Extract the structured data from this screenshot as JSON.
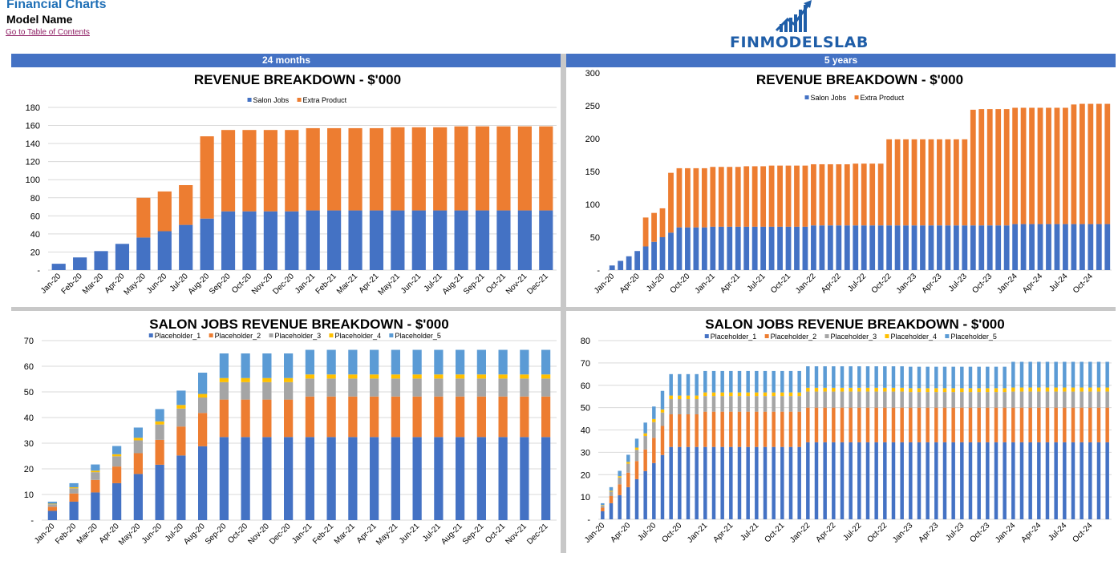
{
  "header": {
    "title": "Financial Charts",
    "model_name": "Model Name",
    "toc_link": "Go to Table of Contents",
    "logo_text": "FINMODELSLAB"
  },
  "panels": {
    "left_label": "24 months",
    "right_label": "5  years"
  },
  "colors": {
    "header_bar": "#4472c4",
    "title_blue": "#1f6fb6",
    "link": "#8d1b62",
    "salon": "#4472c4",
    "extra": "#ed7d31",
    "ph1": "#4472c4",
    "ph2": "#ed7d31",
    "ph3": "#a5a5a5",
    "ph4": "#ffc000",
    "ph5": "#5b9bd5"
  },
  "chart_data": [
    {
      "id": "rev24",
      "type": "bar",
      "stacked": true,
      "title": "REVENUE BREAKDOWN - $'000",
      "categories": [
        "Jan-20",
        "Feb-20",
        "Mar-20",
        "Apr-20",
        "May-20",
        "Jun-20",
        "Jul-20",
        "Aug-20",
        "Sep-20",
        "Oct-20",
        "Nov-20",
        "Dec-20",
        "Jan-21",
        "Feb-21",
        "Mar-21",
        "Apr-21",
        "May-21",
        "Jun-21",
        "Jul-21",
        "Aug-21",
        "Sep-21",
        "Oct-21",
        "Nov-21",
        "Dec-21"
      ],
      "series": [
        {
          "name": "Salon Jobs",
          "color": "#4472c4",
          "values": [
            7,
            14,
            21,
            29,
            36,
            43,
            50,
            57,
            65,
            65,
            65,
            65,
            66,
            66,
            66,
            66,
            66,
            66,
            66,
            66,
            66,
            66,
            66,
            66
          ]
        },
        {
          "name": "Extra Product",
          "color": "#ed7d31",
          "values": [
            0,
            0,
            0,
            0,
            44,
            44,
            44,
            91,
            90,
            90,
            90,
            90,
            91,
            91,
            91,
            91,
            92,
            92,
            92,
            93,
            93,
            93,
            93,
            93
          ]
        }
      ],
      "ylim": [
        0,
        180
      ],
      "yticks": [
        "-",
        "20",
        "40",
        "60",
        "80",
        "100",
        "120",
        "140",
        "160",
        "180"
      ],
      "legend": "top-center",
      "grid": true
    },
    {
      "id": "rev60",
      "type": "bar",
      "stacked": true,
      "title": "REVENUE BREAKDOWN - $'000",
      "categories": [
        "Jan-20",
        "Feb-20",
        "Mar-20",
        "Apr-20",
        "May-20",
        "Jun-20",
        "Jul-20",
        "Aug-20",
        "Sep-20",
        "Oct-20",
        "Nov-20",
        "Dec-20",
        "Jan-21",
        "Feb-21",
        "Mar-21",
        "Apr-21",
        "May-21",
        "Jun-21",
        "Jul-21",
        "Aug-21",
        "Sep-21",
        "Oct-21",
        "Nov-21",
        "Dec-21",
        "Jan-22",
        "Feb-22",
        "Mar-22",
        "Apr-22",
        "May-22",
        "Jun-22",
        "Jul-22",
        "Aug-22",
        "Sep-22",
        "Oct-22",
        "Nov-22",
        "Dec-22",
        "Jan-23",
        "Feb-23",
        "Mar-23",
        "Apr-23",
        "May-23",
        "Jun-23",
        "Jul-23",
        "Aug-23",
        "Sep-23",
        "Oct-23",
        "Nov-23",
        "Dec-23",
        "Jan-24",
        "Feb-24",
        "Mar-24",
        "Apr-24",
        "May-24",
        "Jun-24",
        "Jul-24",
        "Aug-24",
        "Sep-24",
        "Oct-24",
        "Nov-24",
        "Dec-24"
      ],
      "tick_labels": [
        "Jan-20",
        "Apr-20",
        "Jul-20",
        "Oct-20",
        "Jan-21",
        "Apr-21",
        "Jul-21",
        "Oct-21",
        "Jan-22",
        "Apr-22",
        "Jul-22",
        "Oct-22",
        "Jan-23",
        "Apr-23",
        "Jul-23",
        "Oct-23",
        "Jan-24",
        "Apr-24",
        "Jul-24",
        "Oct-24"
      ],
      "series": [
        {
          "name": "Salon Jobs",
          "color": "#4472c4",
          "values": [
            7,
            14,
            21,
            29,
            36,
            43,
            50,
            57,
            65,
            65,
            65,
            65,
            66,
            66,
            66,
            66,
            66,
            66,
            66,
            66,
            66,
            66,
            66,
            66,
            68,
            68,
            68,
            68,
            68,
            68,
            68,
            68,
            68,
            68,
            68,
            68,
            68,
            68,
            68,
            68,
            68,
            68,
            68,
            68,
            68,
            68,
            68,
            68,
            70,
            70,
            70,
            70,
            70,
            70,
            70,
            70,
            70,
            70,
            70,
            70
          ]
        },
        {
          "name": "Extra Product",
          "color": "#ed7d31",
          "values": [
            0,
            0,
            0,
            0,
            44,
            44,
            44,
            91,
            90,
            90,
            90,
            90,
            91,
            91,
            91,
            91,
            92,
            92,
            92,
            93,
            93,
            93,
            93,
            93,
            93,
            93,
            93,
            93,
            93,
            94,
            94,
            94,
            94,
            131,
            131,
            131,
            131,
            131,
            131,
            131,
            131,
            131,
            131,
            176,
            177,
            177,
            177,
            177,
            177,
            177,
            177,
            177,
            177,
            177,
            177,
            182,
            183,
            183,
            183,
            183
          ]
        }
      ],
      "ylim": [
        0,
        300
      ],
      "yticks": [
        "-",
        "50",
        "100",
        "150",
        "200",
        "250",
        "300"
      ],
      "legend": "top-center",
      "grid": false
    },
    {
      "id": "salon24",
      "type": "bar",
      "stacked": true,
      "title": "SALON JOBS REVENUE BREAKDOWN - $'000",
      "categories": [
        "Jan-20",
        "Feb-20",
        "Mar-20",
        "Apr-20",
        "May-20",
        "Jun-20",
        "Jul-20",
        "Aug-20",
        "Sep-20",
        "Oct-20",
        "Nov-20",
        "Dec-20",
        "Jan-21",
        "Feb-21",
        "Mar-21",
        "Apr-21",
        "May-21",
        "Jun-21",
        "Jul-21",
        "Aug-21",
        "Sep-21",
        "Oct-21",
        "Nov-21",
        "Dec-21"
      ],
      "series": [
        {
          "name": "Placeholder_1",
          "color": "#4472c4",
          "values": [
            3.6,
            7.2,
            10.8,
            14.4,
            18.0,
            21.6,
            25.2,
            28.8,
            32.4,
            32.4,
            32.4,
            32.4,
            32.4,
            32.4,
            32.4,
            32.4,
            32.4,
            32.4,
            32.4,
            32.4,
            32.4,
            32.4,
            32.4,
            32.4
          ]
        },
        {
          "name": "Placeholder_2",
          "color": "#ed7d31",
          "values": [
            1.6,
            3.2,
            4.9,
            6.5,
            8.1,
            9.7,
            11.3,
            13.0,
            14.6,
            14.6,
            14.6,
            14.6,
            15.8,
            15.8,
            15.8,
            15.8,
            15.8,
            15.8,
            15.8,
            15.8,
            15.8,
            15.8,
            15.8,
            15.8
          ]
        },
        {
          "name": "Placeholder_3",
          "color": "#a5a5a5",
          "values": [
            1.0,
            2.0,
            3.0,
            4.0,
            5.0,
            6.0,
            7.0,
            6.0,
            6.8,
            6.8,
            6.8,
            6.8,
            7.0,
            7.0,
            7.0,
            7.0,
            7.0,
            7.0,
            7.0,
            7.0,
            7.0,
            7.0,
            7.0,
            7.0
          ]
        },
        {
          "name": "Placeholder_4",
          "color": "#ffc000",
          "values": [
            0.2,
            0.4,
            0.6,
            0.8,
            1.0,
            1.2,
            1.4,
            1.4,
            1.6,
            1.6,
            1.6,
            1.6,
            1.6,
            1.6,
            1.6,
            1.6,
            1.6,
            1.6,
            1.6,
            1.6,
            1.6,
            1.6,
            1.6,
            1.6
          ]
        },
        {
          "name": "Placeholder_5",
          "color": "#5b9bd5",
          "values": [
            0.8,
            1.6,
            2.4,
            3.2,
            4.0,
            4.8,
            5.6,
            8.3,
            9.6,
            9.6,
            9.6,
            9.6,
            9.6,
            9.6,
            9.6,
            9.6,
            9.6,
            9.6,
            9.6,
            9.6,
            9.6,
            9.6,
            9.6,
            9.6
          ]
        }
      ],
      "ylim": [
        0,
        70
      ],
      "yticks": [
        "-",
        "10",
        "20",
        "30",
        "40",
        "50",
        "60",
        "70"
      ],
      "legend": "top-center",
      "grid": true
    },
    {
      "id": "salon60",
      "type": "bar",
      "stacked": true,
      "title": "SALON JOBS REVENUE BREAKDOWN - $'000",
      "categories": [
        "Jan-20",
        "Feb-20",
        "Mar-20",
        "Apr-20",
        "May-20",
        "Jun-20",
        "Jul-20",
        "Aug-20",
        "Sep-20",
        "Oct-20",
        "Nov-20",
        "Dec-20",
        "Jan-21",
        "Feb-21",
        "Mar-21",
        "Apr-21",
        "May-21",
        "Jun-21",
        "Jul-21",
        "Aug-21",
        "Sep-21",
        "Oct-21",
        "Nov-21",
        "Dec-21",
        "Jan-22",
        "Feb-22",
        "Mar-22",
        "Apr-22",
        "May-22",
        "Jun-22",
        "Jul-22",
        "Aug-22",
        "Sep-22",
        "Oct-22",
        "Nov-22",
        "Dec-22",
        "Jan-23",
        "Feb-23",
        "Mar-23",
        "Apr-23",
        "May-23",
        "Jun-23",
        "Jul-23",
        "Aug-23",
        "Sep-23",
        "Oct-23",
        "Nov-23",
        "Dec-23",
        "Jan-24",
        "Feb-24",
        "Mar-24",
        "Apr-24",
        "May-24",
        "Jun-24",
        "Jul-24",
        "Aug-24",
        "Sep-24",
        "Oct-24",
        "Nov-24",
        "Dec-24"
      ],
      "tick_labels": [
        "Jan-20",
        "Apr-20",
        "Jul-20",
        "Oct-20",
        "Jan-21",
        "Apr-21",
        "Jul-21",
        "Oct-21",
        "Jan-22",
        "Apr-22",
        "Jul-22",
        "Oct-22",
        "Jan-23",
        "Apr-23",
        "Jul-23",
        "Oct-23",
        "Jan-24",
        "Apr-24",
        "Jul-24",
        "Oct-24"
      ],
      "series": [
        {
          "name": "Placeholder_1",
          "color": "#4472c4",
          "values": [
            3.6,
            7.2,
            10.8,
            14.4,
            18.0,
            21.6,
            25.2,
            28.8,
            32.4,
            32.4,
            32.4,
            32.4,
            32.4,
            32.4,
            32.4,
            32.4,
            32.4,
            32.4,
            32.4,
            32.4,
            32.4,
            32.4,
            32.4,
            32.4,
            34.5,
            34.5,
            34.5,
            34.5,
            34.5,
            34.5,
            34.5,
            34.5,
            34.5,
            34.5,
            34.5,
            34.5,
            34.5,
            34.5,
            34.5,
            34.5,
            34.5,
            34.5,
            34.5,
            34.5,
            34.5,
            34.5,
            34.5,
            34.5,
            34.5,
            34.5,
            34.5,
            34.5,
            34.5,
            34.5,
            34.5,
            34.5,
            34.5,
            34.5,
            34.5,
            34.5
          ]
        },
        {
          "name": "Placeholder_2",
          "color": "#ed7d31",
          "values": [
            1.6,
            3.2,
            4.9,
            6.5,
            8.1,
            9.7,
            11.3,
            13.0,
            14.6,
            14.6,
            14.6,
            14.6,
            15.8,
            15.8,
            15.8,
            15.8,
            15.8,
            15.8,
            15.8,
            15.8,
            15.8,
            15.8,
            15.8,
            15.8,
            15.5,
            15.5,
            15.5,
            15.5,
            15.5,
            15.5,
            15.5,
            15.5,
            15.5,
            15.5,
            15.5,
            15.5,
            15.5,
            15.5,
            15.5,
            15.5,
            15.5,
            15.5,
            15.5,
            15.5,
            15.5,
            15.5,
            15.5,
            15.5,
            15.5,
            15.5,
            15.5,
            15.5,
            15.5,
            15.5,
            15.5,
            15.5,
            15.5,
            15.5,
            15.5,
            15.5
          ]
        },
        {
          "name": "Placeholder_3",
          "color": "#a5a5a5",
          "values": [
            1.0,
            2.0,
            3.0,
            4.0,
            5.0,
            6.0,
            7.0,
            6.0,
            6.8,
            6.8,
            6.8,
            6.8,
            7.0,
            7.0,
            7.0,
            7.0,
            7.0,
            7.0,
            7.0,
            7.0,
            7.0,
            7.0,
            7.0,
            7.0,
            7.2,
            7.2,
            7.2,
            7.2,
            7.2,
            7.2,
            7.2,
            7.2,
            7.2,
            7.2,
            7.2,
            7.2,
            7.0,
            7.0,
            7.0,
            7.0,
            7.0,
            7.0,
            7.0,
            7.0,
            7.0,
            7.0,
            7.0,
            7.0,
            7.2,
            7.2,
            7.2,
            7.2,
            7.2,
            7.2,
            7.2,
            7.2,
            7.2,
            7.2,
            7.2,
            7.2
          ]
        },
        {
          "name": "Placeholder_4",
          "color": "#ffc000",
          "values": [
            0.2,
            0.4,
            0.6,
            0.8,
            1.0,
            1.2,
            1.4,
            1.4,
            1.6,
            1.6,
            1.6,
            1.6,
            1.6,
            1.6,
            1.6,
            1.6,
            1.6,
            1.6,
            1.6,
            1.6,
            1.6,
            1.6,
            1.6,
            1.6,
            1.7,
            1.7,
            1.7,
            1.7,
            1.7,
            1.7,
            1.7,
            1.7,
            1.7,
            1.7,
            1.7,
            1.7,
            1.7,
            1.7,
            1.7,
            1.7,
            1.7,
            1.7,
            1.7,
            1.7,
            1.7,
            1.7,
            1.7,
            1.7,
            1.8,
            1.8,
            1.8,
            1.8,
            1.8,
            1.8,
            1.8,
            1.8,
            1.8,
            1.8,
            1.8,
            1.8
          ]
        },
        {
          "name": "Placeholder_5",
          "color": "#5b9bd5",
          "values": [
            0.8,
            1.6,
            2.4,
            3.2,
            4.0,
            4.8,
            5.6,
            8.3,
            9.6,
            9.6,
            9.6,
            9.6,
            9.6,
            9.6,
            9.6,
            9.6,
            9.6,
            9.6,
            9.6,
            9.6,
            9.6,
            9.6,
            9.6,
            9.6,
            9.6,
            9.6,
            9.6,
            9.6,
            9.6,
            9.6,
            9.6,
            9.6,
            9.6,
            9.6,
            9.6,
            9.6,
            9.6,
            9.6,
            9.6,
            9.6,
            9.6,
            9.6,
            9.6,
            9.6,
            9.6,
            9.6,
            9.6,
            9.6,
            11.5,
            11.5,
            11.5,
            11.5,
            11.5,
            11.5,
            11.5,
            11.5,
            11.5,
            11.5,
            11.5,
            11.5
          ]
        }
      ],
      "ylim": [
        0,
        80
      ],
      "yticks": [
        "-",
        "10",
        "20",
        "30",
        "40",
        "50",
        "60",
        "70",
        "80"
      ],
      "legend": "top-center",
      "grid": true
    }
  ]
}
